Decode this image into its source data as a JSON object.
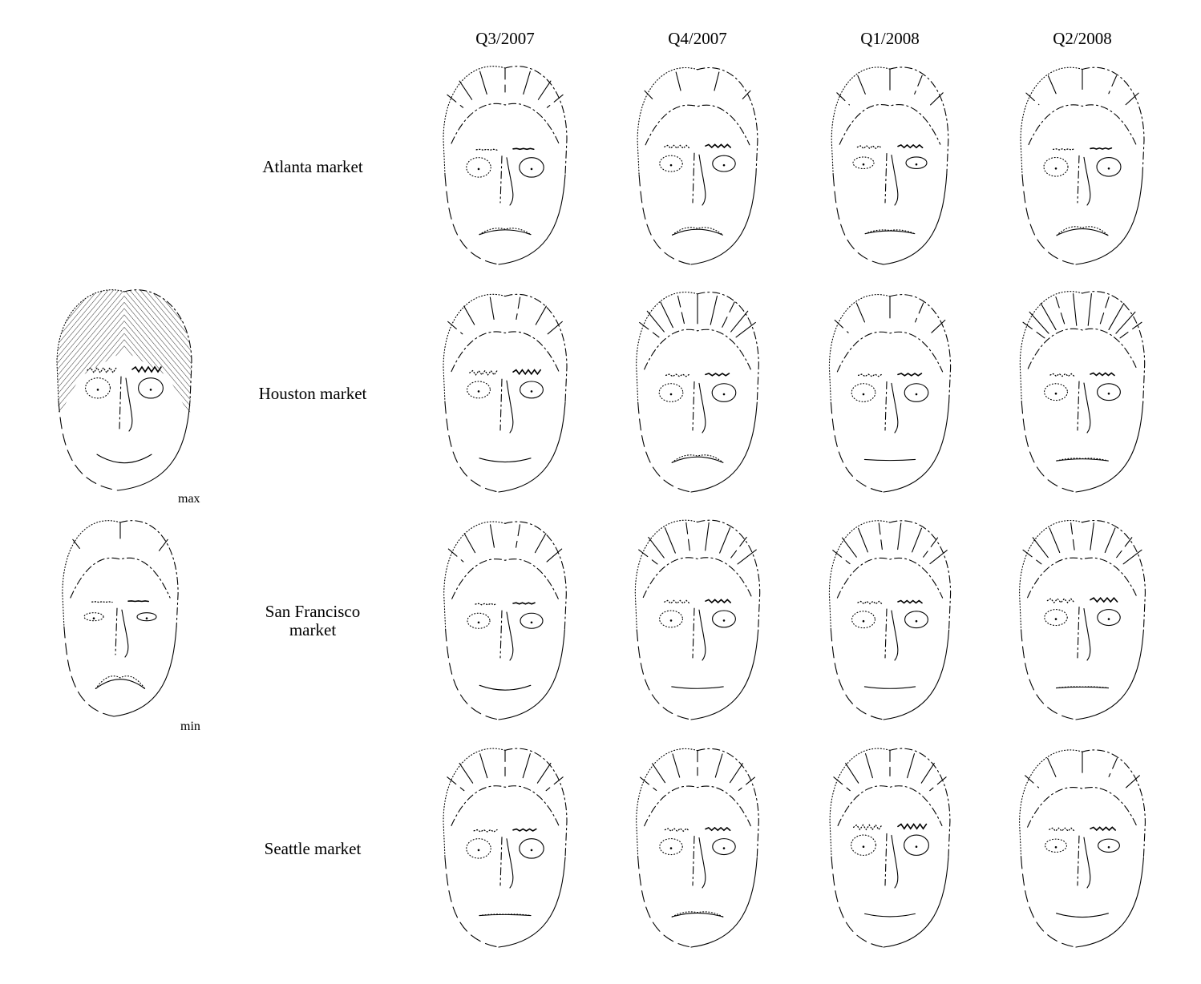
{
  "columns": [
    "Q3/2007",
    "Q4/2007",
    "Q1/2008",
    "Q2/2008"
  ],
  "rows": [
    {
      "label_lines": [
        "Atlanta market"
      ],
      "faces": [
        {
          "hair": 0.5,
          "brow": 0.15,
          "eye": 0.8,
          "smile": 0.25,
          "face_w": 0.5
        },
        {
          "hair": 0.2,
          "brow": 0.6,
          "eye": 0.55,
          "smile": 0.2,
          "face_w": 0.35
        },
        {
          "hair": 0.3,
          "brow": 0.55,
          "eye": 0.25,
          "smile": 0.35,
          "face_w": 0.2
        },
        {
          "hair": 0.25,
          "brow": 0.2,
          "eye": 0.75,
          "smile": 0.15,
          "face_w": 0.5
        }
      ]
    },
    {
      "label_lines": [
        "Houston market"
      ],
      "faces": [
        {
          "hair": 0.4,
          "brow": 0.85,
          "eye": 0.6,
          "smile": 0.7,
          "face_w": 0.5
        },
        {
          "hair": 0.85,
          "brow": 0.45,
          "eye": 0.7,
          "smile": 0.2,
          "face_w": 0.45
        },
        {
          "hair": 0.35,
          "brow": 0.45,
          "eye": 0.7,
          "smile": 0.55,
          "face_w": 0.4
        },
        {
          "hair": 1.0,
          "brow": 0.5,
          "eye": 0.6,
          "smile": 0.4,
          "face_w": 0.55
        }
      ]
    },
    {
      "label_lines": [
        "San Francisco",
        "market"
      ],
      "faces": [
        {
          "hair": 0.45,
          "brow": 0.25,
          "eye": 0.5,
          "smile": 0.75,
          "face_w": 0.45
        },
        {
          "hair": 0.75,
          "brow": 0.6,
          "eye": 0.6,
          "smile": 0.6,
          "face_w": 0.55
        },
        {
          "hair": 0.65,
          "brow": 0.5,
          "eye": 0.6,
          "smile": 0.6,
          "face_w": 0.4
        },
        {
          "hair": 0.7,
          "brow": 0.8,
          "eye": 0.55,
          "smile": 0.45,
          "face_w": 0.6
        }
      ]
    },
    {
      "label_lines": [
        "Seattle market"
      ],
      "faces": [
        {
          "hair": 0.6,
          "brow": 0.4,
          "eye": 0.8,
          "smile": 0.45,
          "face_w": 0.5
        },
        {
          "hair": 0.55,
          "brow": 0.55,
          "eye": 0.55,
          "smile": 0.3,
          "face_w": 0.45
        },
        {
          "hair": 0.6,
          "brow": 0.95,
          "eye": 0.85,
          "smile": 0.65,
          "face_w": 0.35
        },
        {
          "hair": 0.3,
          "brow": 0.6,
          "eye": 0.35,
          "smile": 0.7,
          "face_w": 0.6
        }
      ]
    }
  ],
  "reference": {
    "max_label": "max",
    "min_label": "min"
  }
}
